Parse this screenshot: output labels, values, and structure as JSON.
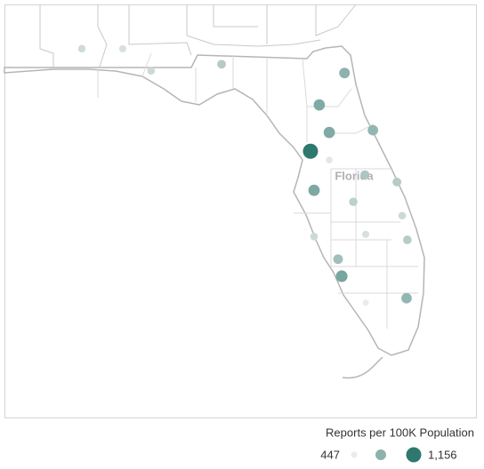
{
  "chart_data": {
    "type": "bubble-map",
    "label": "Florida",
    "lon": [
      -88.25,
      -87.23,
      -86.52,
      -84.76,
      -81.69,
      -82.32,
      -82.07,
      -80.98,
      -82.54,
      -82.07,
      -81.18,
      -80.38,
      -82.45,
      -81.47,
      -80.25,
      -80.12,
      -82.45,
      -81.16,
      -81.85,
      -81.76,
      -80.14,
      -81.16
    ],
    "lat": [
      30.5,
      30.5,
      30.1,
      30.22,
      30.06,
      29.48,
      28.98,
      29.02,
      28.64,
      28.48,
      28.21,
      28.08,
      27.93,
      27.72,
      27.47,
      27.03,
      27.09,
      27.13,
      26.68,
      26.37,
      25.97,
      25.89
    ],
    "values": [
      550,
      520,
      560,
      650,
      800,
      850,
      850,
      780,
      1156,
      480,
      680,
      650,
      860,
      620,
      560,
      640,
      560,
      520,
      720,
      880,
      780,
      447
    ],
    "color_range": [
      "#e9ecec",
      "#2f7870"
    ],
    "legend": {
      "title": "Reports per 100K Population",
      "values": [
        447,
        801,
        1156
      ],
      "value_labels": [
        "447",
        null,
        "1,156"
      ]
    }
  }
}
